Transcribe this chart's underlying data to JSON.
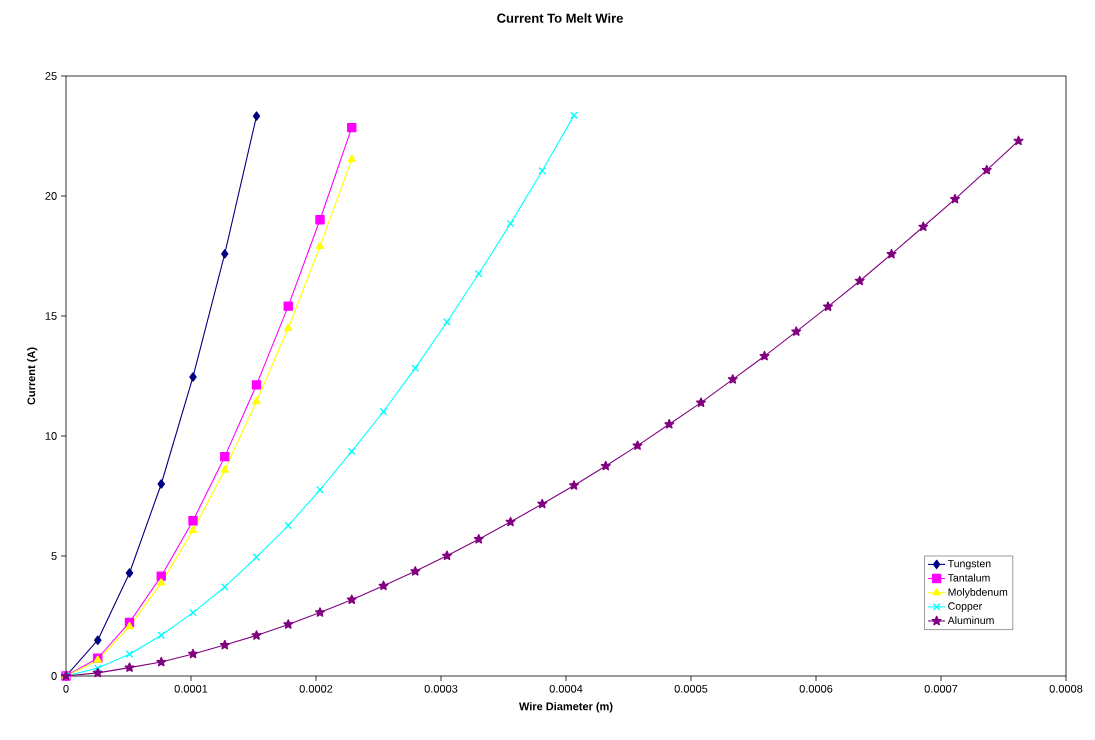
{
  "chart_data": {
    "type": "line",
    "title": "Current To Melt Wire",
    "xlabel": "Wire Diameter (m)",
    "ylabel": "Current (A)",
    "xlim": [
      0,
      0.0008
    ],
    "ylim": [
      0,
      25
    ],
    "xticks": [
      0,
      0.0001,
      0.0002,
      0.0003,
      0.0004,
      0.0005,
      0.0006,
      0.0007,
      0.0008
    ],
    "yticks": [
      0,
      5,
      10,
      15,
      20,
      25
    ],
    "grid": false,
    "legend": "bottom right",
    "series": [
      {
        "name": "Tungsten",
        "color": "#000080",
        "marker": "diamond",
        "x": [
          0,
          2.54e-05,
          5.08e-05,
          7.62e-05,
          0.0001016,
          0.000127,
          0.0001524
        ],
        "values": [
          0,
          1.49,
          4.29,
          8.0,
          12.46,
          17.59,
          23.33
        ]
      },
      {
        "name": "Tantalum",
        "color": "#ff00ff",
        "marker": "square",
        "x": [
          0,
          2.54e-05,
          5.08e-05,
          7.62e-05,
          0.0001016,
          0.000127,
          0.0001524,
          0.0001778,
          0.0002032,
          0.0002286
        ],
        "values": [
          0,
          0.74,
          2.23,
          4.16,
          6.47,
          9.14,
          12.13,
          15.41,
          19.01,
          22.85
        ]
      },
      {
        "name": "Molybdenum",
        "color": "#ffff00",
        "marker": "triangle",
        "x": [
          0,
          2.54e-05,
          5.08e-05,
          7.62e-05,
          0.0001016,
          0.000127,
          0.0001524,
          0.0001778,
          0.0002032,
          0.0002286
        ],
        "values": [
          0,
          0.66,
          2.06,
          3.88,
          6.07,
          8.58,
          11.44,
          14.49,
          17.9,
          21.53
        ]
      },
      {
        "name": "Copper",
        "color": "#00ffff",
        "marker": "cross",
        "x": [
          0,
          2.54e-05,
          5.08e-05,
          7.62e-05,
          0.0001016,
          0.000127,
          0.0001524,
          0.0001778,
          0.0002032,
          0.0002286,
          0.000254,
          0.0002794,
          0.0003048,
          0.0003302,
          0.0003556,
          0.000381,
          0.0004064
        ],
        "values": [
          0,
          0.33,
          0.91,
          1.7,
          2.64,
          3.71,
          4.95,
          6.27,
          7.76,
          9.36,
          11.02,
          12.83,
          14.75,
          16.76,
          18.85,
          21.05,
          23.36
        ]
      },
      {
        "name": "Aluminum",
        "color": "#800080",
        "marker": "star",
        "x": [
          0,
          2.54e-05,
          5.08e-05,
          7.62e-05,
          0.0001016,
          0.000127,
          0.0001524,
          0.0001778,
          0.0002032,
          0.0002286,
          0.000254,
          0.0002794,
          0.0003048,
          0.0003302,
          0.0003556,
          0.000381,
          0.0004064,
          0.0004318,
          0.0004572,
          0.0004826,
          0.000508,
          0.0005334,
          0.0005588,
          0.0005842,
          0.0006096,
          0.000635,
          0.0006604,
          0.0006858,
          0.0007112,
          0.0007366,
          0.000762
        ],
        "values": [
          0,
          0.13,
          0.35,
          0.58,
          0.92,
          1.29,
          1.69,
          2.15,
          2.65,
          3.18,
          3.76,
          4.36,
          5.01,
          5.7,
          6.42,
          7.17,
          7.94,
          8.75,
          9.6,
          10.49,
          11.39,
          12.36,
          13.33,
          14.35,
          15.39,
          16.46,
          17.58,
          18.72,
          19.87,
          21.08,
          22.3
        ]
      }
    ]
  }
}
